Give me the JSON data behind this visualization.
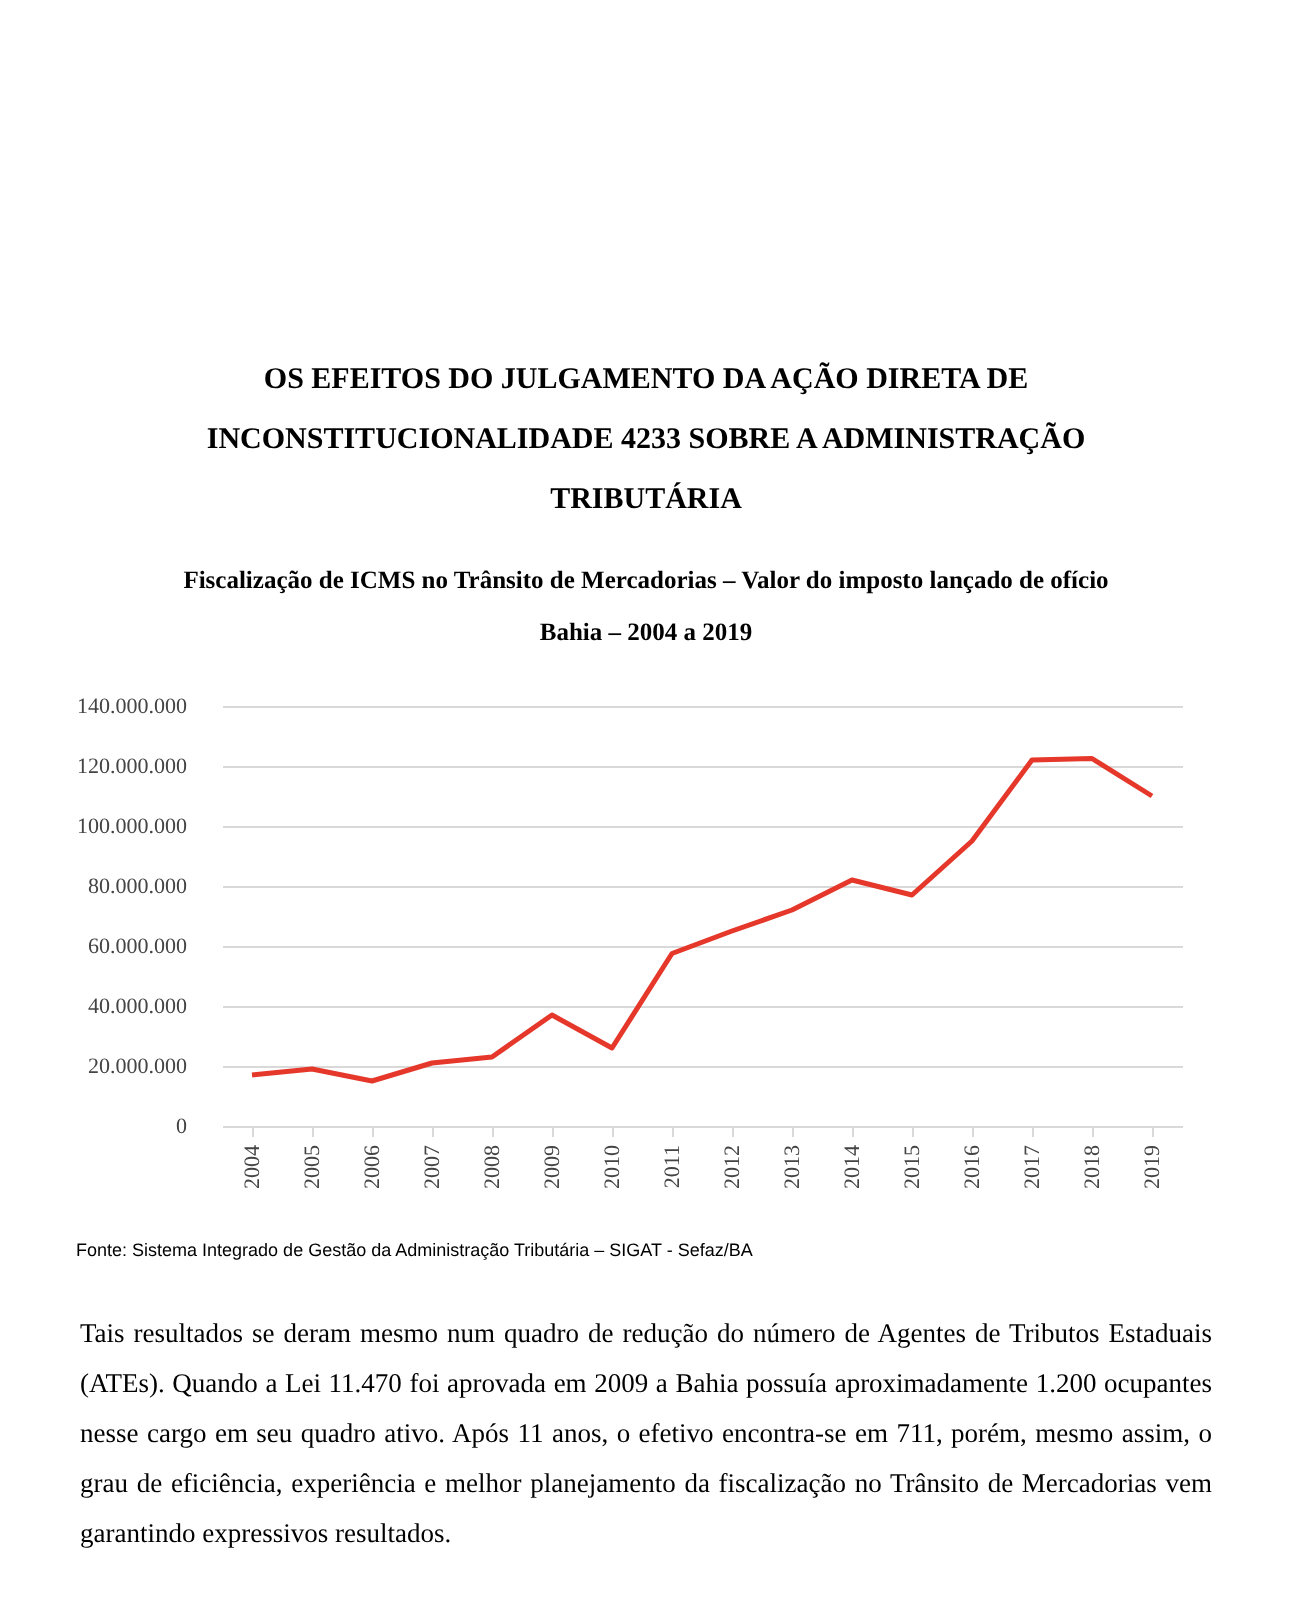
{
  "chart_data": {
    "type": "line",
    "title": "OS EFEITOS DO JULGAMENTO DA AÇÃO DIRETA DE INCONSTITUCIONALIDADE 4233 SOBRE A ADMINISTRAÇÃO TRIBUTÁRIA",
    "subtitle": "Fiscalização de ICMS no Trânsito de Mercadorias – Valor do imposto lançado de ofício\nBahia – 2004 a 2019",
    "categories": [
      "2004",
      "2005",
      "2006",
      "2007",
      "2008",
      "2009",
      "2010",
      "2011",
      "2012",
      "2013",
      "2014",
      "2015",
      "2016",
      "2017",
      "2018",
      "2019"
    ],
    "series": [
      {
        "color": "#e5372a",
        "values": [
          17000000,
          19000000,
          15000000,
          21000000,
          23000000,
          37000000,
          26000000,
          57500000,
          65000000,
          72000000,
          82000000,
          77000000,
          95000000,
          122000000,
          122500000,
          110000000
        ]
      }
    ],
    "ylim": [
      0,
      140000000
    ],
    "yticks": [
      0,
      {
        "value": 20000000,
        "label": "20.000.000"
      },
      {
        "value": 40000000,
        "label": "40.000.000"
      },
      {
        "value": 60000000,
        "label": "60.000.000"
      },
      {
        "value": 80000000,
        "label": "80.000.000"
      },
      {
        "value": 100000000,
        "label": "100.000.000"
      },
      {
        "value": 120000000,
        "label": "120.000.000"
      },
      {
        "value": 140000000,
        "label": "140.000.000"
      }
    ],
    "grid": "y",
    "marker": "none",
    "line_style": "solid",
    "annotations": [
      "Fonte: Sistema Integrado de Gestão da Administração Tributária – SIGAT - Sefaz/BA",
      "Tais resultados se deram mesmo num quadro de redução do número de Agentes de Tributos Estaduais (ATEs). Quando a Lei 11.470 foi aprovada em 2009 a Bahia possuía aproximadamente 1.200 ocupantes nesse cargo em seu quadro ativo. Após 11 anos, o efetivo encontra-se em 711, porém, mesmo assim, o grau de eficiência, experiência e melhor planejamento da fiscalização no Trânsito de Mercadorias vem garantindo expressivos resultados."
    ]
  }
}
